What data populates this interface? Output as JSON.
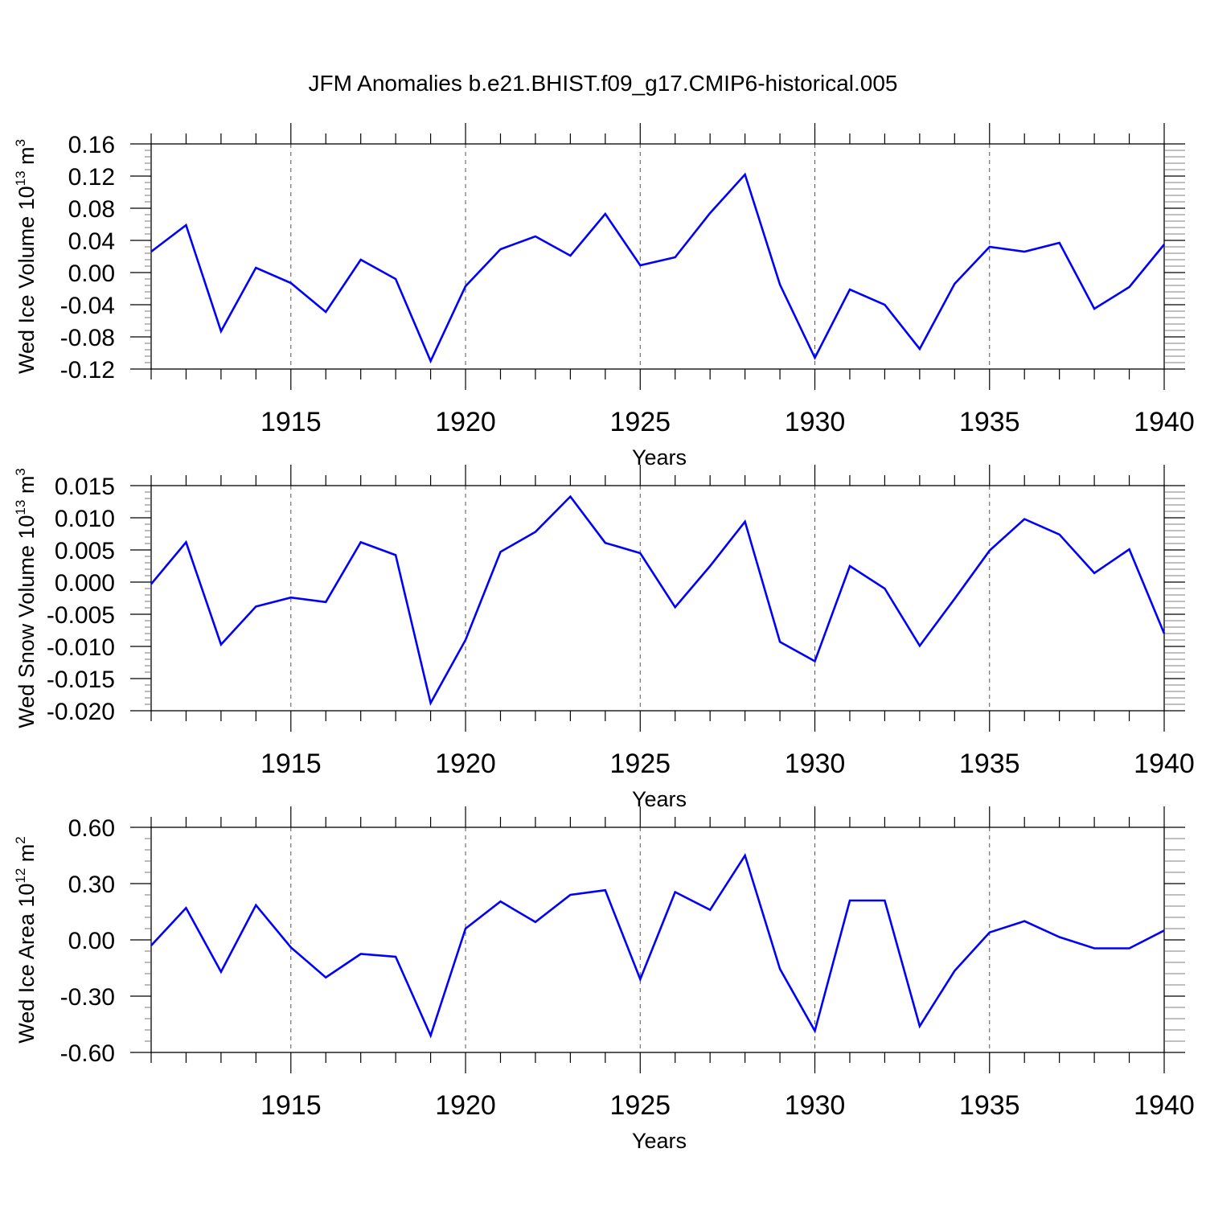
{
  "title": "JFM Anomalies b.e21.BHIST.f09_g17.CMIP6-historical.005",
  "colors": {
    "line": "#0000ff",
    "axis": "#000000",
    "grid": "#000000"
  },
  "chart_data": [
    {
      "type": "line",
      "ylabel": {
        "text": "Wed Ice Volume 10",
        "sup": "13",
        "unit": " m",
        "unit_sup": "3"
      },
      "xlabel": "Years",
      "xlim": [
        1911,
        1940
      ],
      "ylim": [
        -0.12,
        0.16
      ],
      "yticks": [
        "0.16",
        "0.12",
        "0.08",
        "0.04",
        "0.00",
        "-0.04",
        "-0.08",
        "-0.12"
      ],
      "xticks": [
        "1915",
        "1920",
        "1925",
        "1930",
        "1935",
        "1940"
      ],
      "grid": "dashed vertical at major x ticks",
      "x": [
        1911,
        1912,
        1913,
        1914,
        1915,
        1916,
        1917,
        1918,
        1919,
        1920,
        1921,
        1922,
        1923,
        1924,
        1925,
        1926,
        1927,
        1928,
        1929,
        1930,
        1931,
        1932,
        1933,
        1934,
        1935,
        1936,
        1937,
        1938,
        1939,
        1940
      ],
      "values": [
        0.026,
        0.059,
        -0.073,
        0.006,
        -0.013,
        -0.049,
        0.016,
        -0.008,
        -0.11,
        -0.017,
        0.029,
        0.045,
        0.021,
        0.073,
        0.009,
        0.019,
        0.074,
        0.122,
        -0.015,
        -0.106,
        -0.021,
        -0.04,
        -0.095,
        -0.014,
        0.032,
        0.026,
        0.037,
        -0.045,
        -0.018,
        0.035
      ]
    },
    {
      "type": "line",
      "ylabel": {
        "text": "Wed Snow Volume 10",
        "sup": "13",
        "unit": " m",
        "unit_sup": "3"
      },
      "xlabel": "Years",
      "xlim": [
        1911,
        1940
      ],
      "ylim": [
        -0.02,
        0.015
      ],
      "yticks": [
        "0.015",
        "0.010",
        "0.005",
        "0.000",
        "-0.005",
        "-0.010",
        "-0.015",
        "-0.020"
      ],
      "xticks": [
        "1915",
        "1920",
        "1925",
        "1930",
        "1935",
        "1940"
      ],
      "grid": "dashed vertical at major x ticks",
      "x": [
        1911,
        1912,
        1913,
        1914,
        1915,
        1916,
        1917,
        1918,
        1919,
        1920,
        1921,
        1922,
        1923,
        1924,
        1925,
        1926,
        1927,
        1928,
        1929,
        1930,
        1931,
        1932,
        1933,
        1934,
        1935,
        1936,
        1937,
        1938,
        1939,
        1940
      ],
      "values": [
        -0.0003,
        0.0062,
        -0.0097,
        -0.0038,
        -0.0024,
        -0.0031,
        0.0062,
        0.0042,
        -0.0188,
        -0.009,
        0.0047,
        0.0078,
        0.0133,
        0.0061,
        0.0045,
        -0.0039,
        0.0025,
        0.0094,
        -0.0093,
        -0.0123,
        0.0025,
        -0.001,
        -0.0099,
        -0.0026,
        0.0049,
        0.0098,
        0.0074,
        0.0014,
        0.0051,
        -0.008
      ]
    },
    {
      "type": "line",
      "ylabel": {
        "text": "Wed Ice Area 10",
        "sup": "12",
        "unit": " m",
        "unit_sup": "2"
      },
      "xlabel": "Years",
      "xlim": [
        1911,
        1940
      ],
      "ylim": [
        -0.6,
        0.6
      ],
      "yticks": [
        "0.60",
        "0.30",
        "0.00",
        "-0.30",
        "-0.60"
      ],
      "xticks": [
        "1915",
        "1920",
        "1925",
        "1930",
        "1935",
        "1940"
      ],
      "grid": "dashed vertical at major x ticks",
      "x": [
        1911,
        1912,
        1913,
        1914,
        1915,
        1916,
        1917,
        1918,
        1919,
        1920,
        1921,
        1922,
        1923,
        1924,
        1925,
        1926,
        1927,
        1928,
        1929,
        1930,
        1931,
        1932,
        1933,
        1934,
        1935,
        1936,
        1937,
        1938,
        1939,
        1940
      ],
      "values": [
        -0.03,
        0.17,
        -0.17,
        0.185,
        -0.04,
        -0.2,
        -0.075,
        -0.09,
        -0.51,
        0.06,
        0.205,
        0.095,
        0.24,
        0.265,
        -0.21,
        0.255,
        0.16,
        0.45,
        -0.155,
        -0.485,
        0.21,
        0.21,
        -0.46,
        -0.165,
        0.04,
        0.1,
        0.015,
        -0.045,
        -0.045,
        0.05
      ]
    }
  ]
}
